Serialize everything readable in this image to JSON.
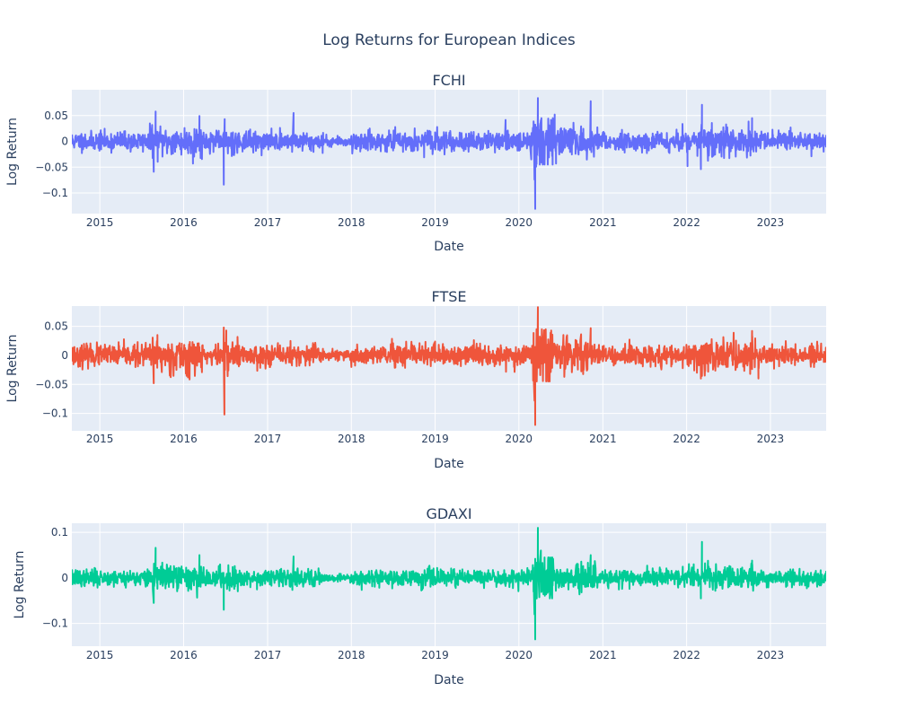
{
  "title": "Log Returns for European Indices",
  "chart_data": [
    {
      "type": "line",
      "subtitle": "FCHI",
      "xlabel": "Date",
      "ylabel": "Log Return",
      "xlim": [
        "2014-09-01",
        "2023-09-01"
      ],
      "ylim": [
        -0.14,
        0.1
      ],
      "y_ticks": [
        {
          "value": -0.1,
          "label": "−0.1"
        },
        {
          "value": -0.05,
          "label": "−0.05"
        },
        {
          "value": 0,
          "label": "0"
        },
        {
          "value": 0.05,
          "label": "0.05"
        }
      ],
      "x_ticks": [
        "2015",
        "2016",
        "2017",
        "2018",
        "2019",
        "2020",
        "2021",
        "2022",
        "2023"
      ],
      "grid": true,
      "series": [
        {
          "color": "#636efa",
          "seed": 11,
          "points": [
            {
              "x": "2015-08-24",
              "y": -0.059
            },
            {
              "x": "2015-09-01",
              "y": 0.058
            },
            {
              "x": "2016-02-11",
              "y": -0.043
            },
            {
              "x": "2016-03-10",
              "y": 0.049
            },
            {
              "x": "2016-06-24",
              "y": -0.084
            },
            {
              "x": "2016-06-28",
              "y": 0.043
            },
            {
              "x": "2017-04-24",
              "y": 0.055
            },
            {
              "x": "2020-02-24",
              "y": -0.035
            },
            {
              "x": "2020-03-09",
              "y": -0.074
            },
            {
              "x": "2020-03-12",
              "y": -0.131
            },
            {
              "x": "2020-03-16",
              "y": -0.049
            },
            {
              "x": "2020-03-24",
              "y": 0.084
            },
            {
              "x": "2020-04-06",
              "y": 0.041
            },
            {
              "x": "2020-06-05",
              "y": 0.052
            },
            {
              "x": "2020-06-11",
              "y": -0.043
            },
            {
              "x": "2020-11-09",
              "y": 0.078
            },
            {
              "x": "2022-01-05",
              "y": -0.048
            },
            {
              "x": "2022-03-04",
              "y": -0.054
            },
            {
              "x": "2022-03-09",
              "y": 0.071
            },
            {
              "x": "2022-10-13",
              "y": 0.045
            }
          ]
        }
      ]
    },
    {
      "type": "line",
      "subtitle": "FTSE",
      "xlabel": "Date",
      "ylabel": "Log Return",
      "xlim": [
        "2014-09-01",
        "2023-09-01"
      ],
      "ylim": [
        -0.13,
        0.085
      ],
      "y_ticks": [
        {
          "value": -0.1,
          "label": "−0.1"
        },
        {
          "value": -0.05,
          "label": "−0.05"
        },
        {
          "value": 0,
          "label": "0"
        },
        {
          "value": 0.05,
          "label": "0.05"
        }
      ],
      "x_ticks": [
        "2015",
        "2016",
        "2017",
        "2018",
        "2019",
        "2020",
        "2021",
        "2022",
        "2023"
      ],
      "grid": true,
      "series": [
        {
          "color": "#ef553b",
          "seed": 23,
          "points": [
            {
              "x": "2015-08-24",
              "y": -0.048
            },
            {
              "x": "2015-09-09",
              "y": 0.035
            },
            {
              "x": "2016-01-20",
              "y": -0.038
            },
            {
              "x": "2016-06-24",
              "y": 0.048
            },
            {
              "x": "2016-06-27",
              "y": -0.102
            },
            {
              "x": "2016-07-05",
              "y": 0.043
            },
            {
              "x": "2020-03-09",
              "y": -0.078
            },
            {
              "x": "2020-03-12",
              "y": -0.12
            },
            {
              "x": "2020-03-24",
              "y": 0.083
            },
            {
              "x": "2020-04-06",
              "y": 0.03
            },
            {
              "x": "2020-11-09",
              "y": 0.047
            },
            {
              "x": "2022-03-04",
              "y": -0.04
            },
            {
              "x": "2022-10-13",
              "y": 0.042
            },
            {
              "x": "2022-11-10",
              "y": -0.04
            }
          ]
        }
      ]
    },
    {
      "type": "line",
      "subtitle": "GDAXI",
      "xlabel": "Date",
      "ylabel": "Log Return",
      "xlim": [
        "2014-09-01",
        "2023-09-01"
      ],
      "ylim": [
        -0.15,
        0.12
      ],
      "y_ticks": [
        {
          "value": -0.1,
          "label": "−0.1"
        },
        {
          "value": 0,
          "label": "0"
        },
        {
          "value": 0.1,
          "label": "0.1"
        }
      ],
      "x_ticks": [
        "2015",
        "2016",
        "2017",
        "2018",
        "2019",
        "2020",
        "2021",
        "2022",
        "2023"
      ],
      "grid": true,
      "series": [
        {
          "color": "#00cc96",
          "seed": 37,
          "points": [
            {
              "x": "2015-08-24",
              "y": -0.055
            },
            {
              "x": "2015-09-01",
              "y": 0.066
            },
            {
              "x": "2016-03-10",
              "y": 0.05
            },
            {
              "x": "2016-06-24",
              "y": -0.07
            },
            {
              "x": "2017-04-24",
              "y": 0.047
            },
            {
              "x": "2020-03-09",
              "y": -0.08
            },
            {
              "x": "2020-03-12",
              "y": -0.135
            },
            {
              "x": "2020-03-24",
              "y": 0.11
            },
            {
              "x": "2020-04-06",
              "y": 0.06
            },
            {
              "x": "2020-11-09",
              "y": 0.05
            },
            {
              "x": "2022-03-04",
              "y": -0.045
            },
            {
              "x": "2022-03-09",
              "y": 0.079
            },
            {
              "x": "2022-10-13",
              "y": 0.038
            }
          ]
        }
      ]
    }
  ]
}
